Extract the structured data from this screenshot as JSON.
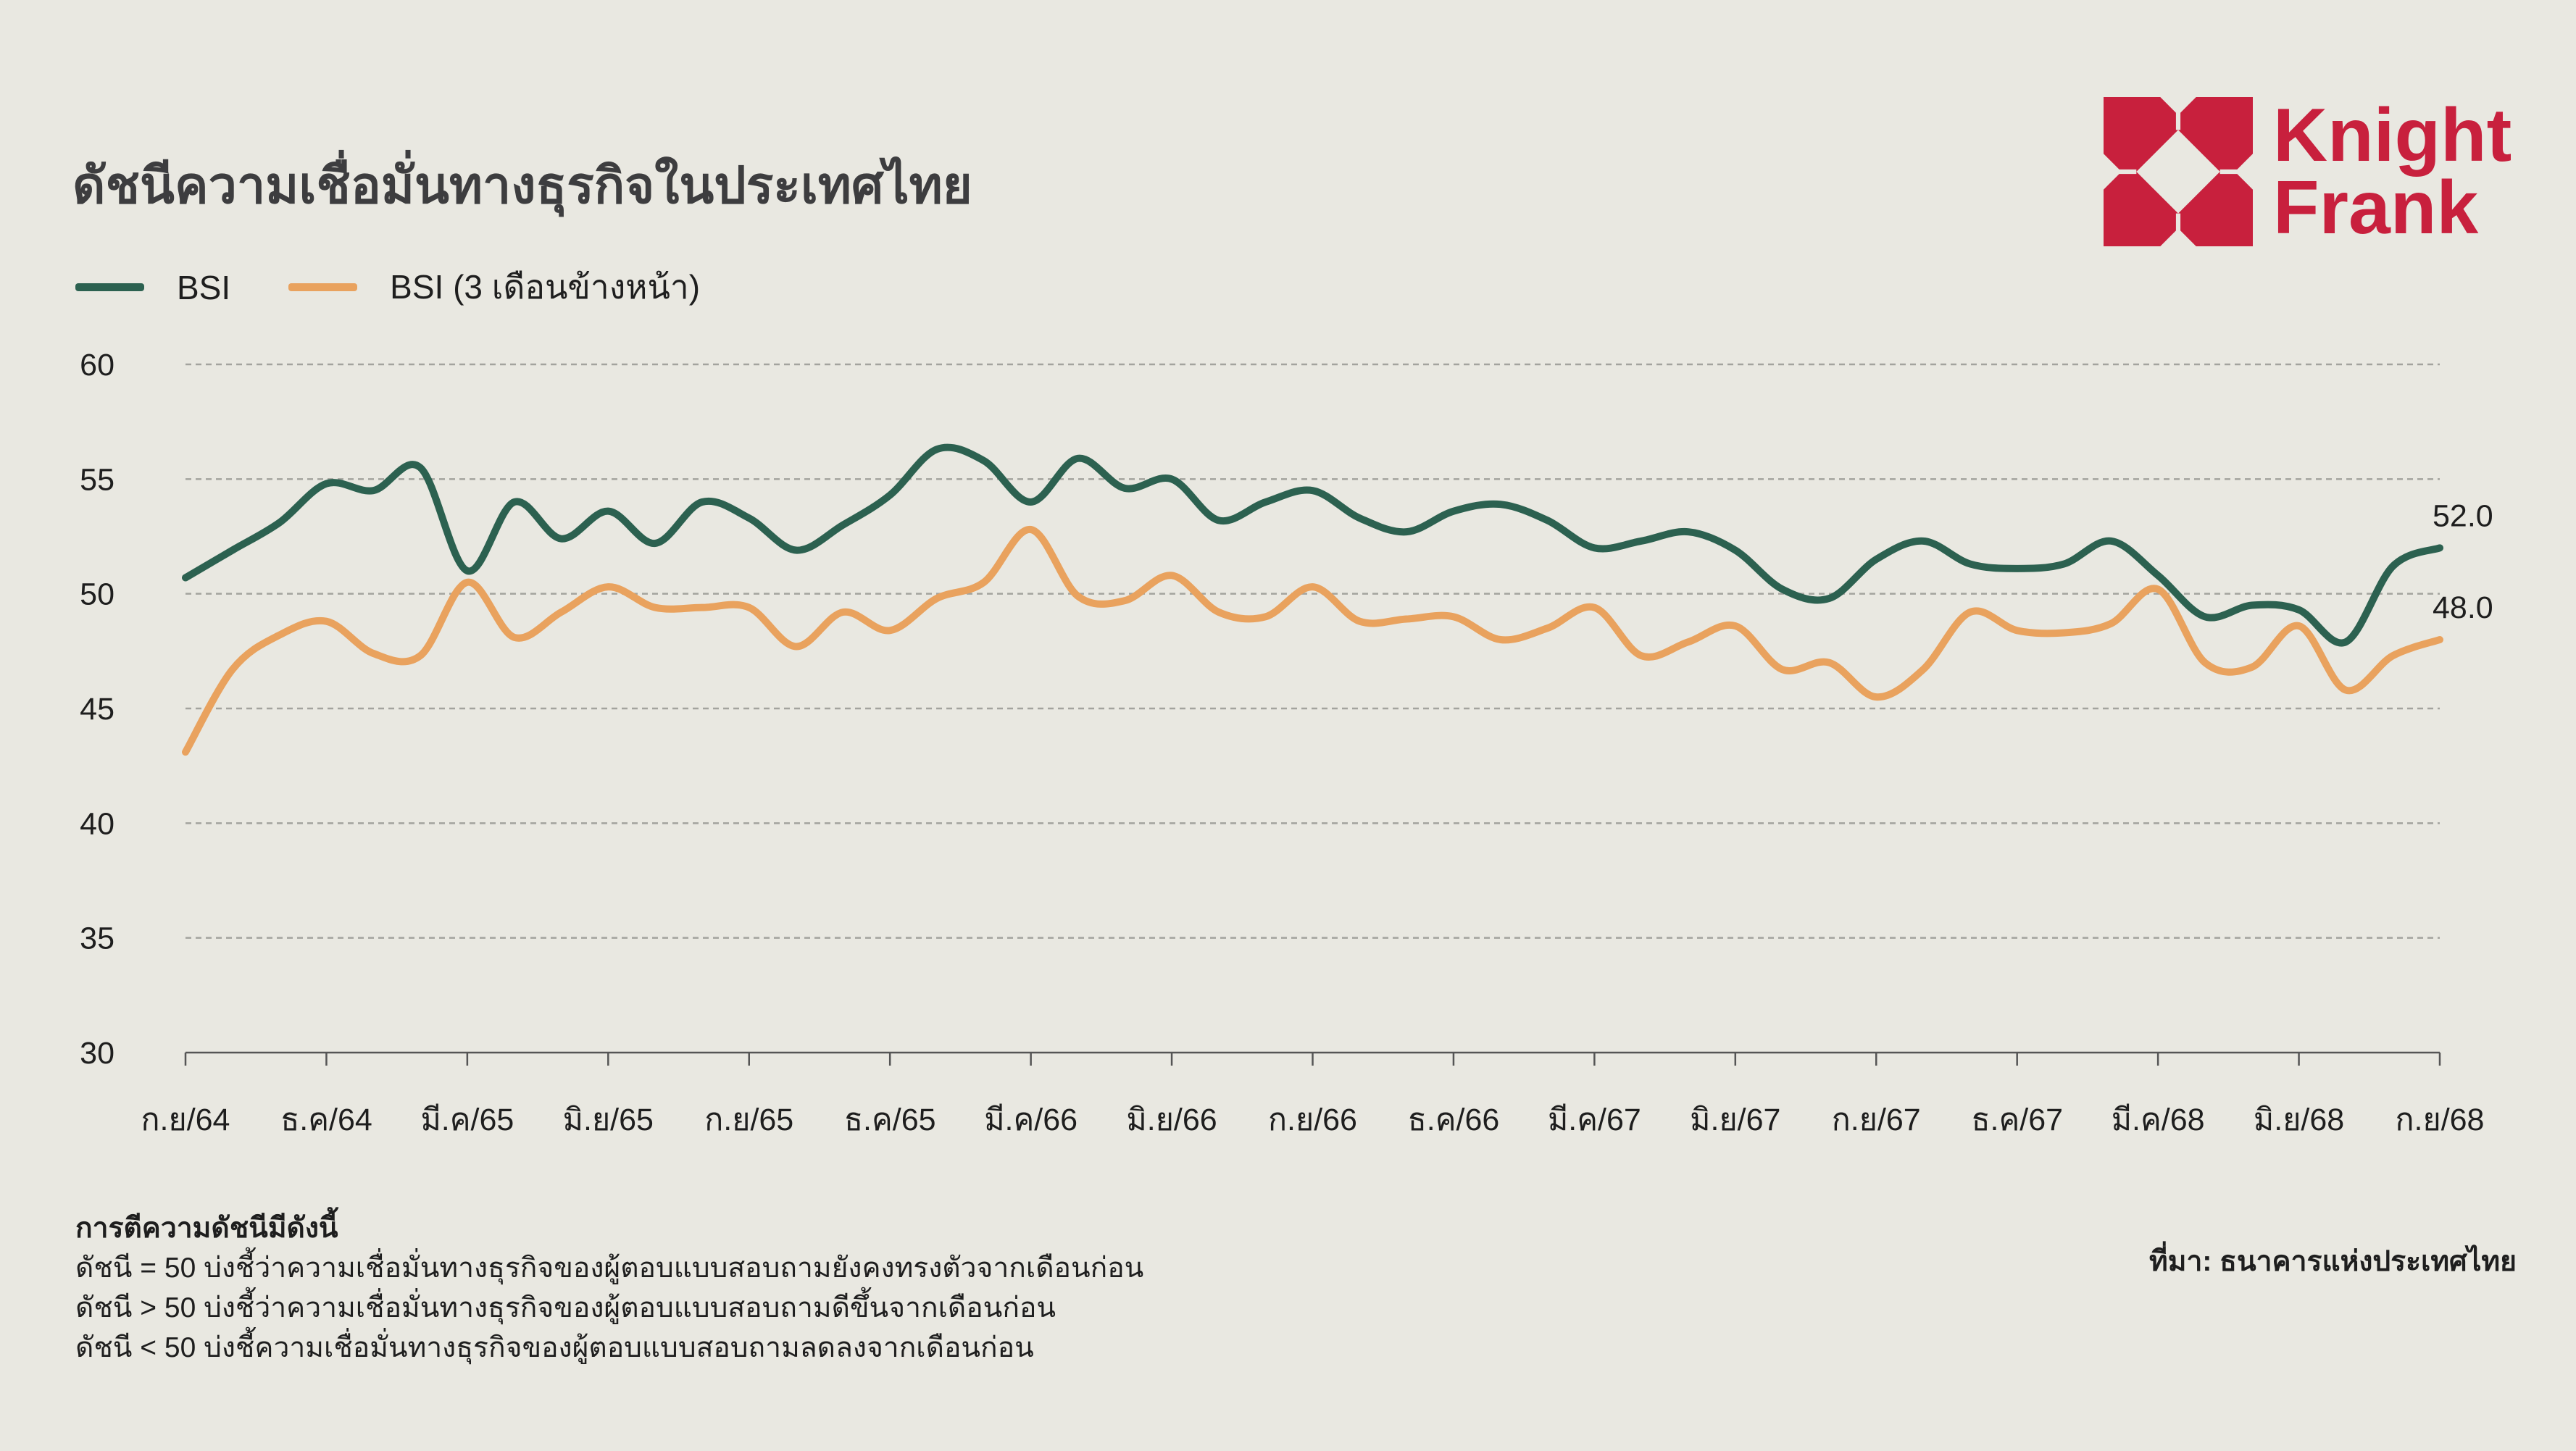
{
  "title": "ดัชนีความเชื่อมั่นทางธุรกิจในประเทศไทย",
  "logo": {
    "line1": "Knight",
    "line2": "Frank",
    "color": "#c8203d"
  },
  "legend": [
    {
      "label": "BSI",
      "color": "#2c6150"
    },
    {
      "label": "BSI (3 เดือนข้างหน้า)",
      "color": "#e9a25e"
    }
  ],
  "notes": {
    "heading": "การตีความดัชนีมีดังนี้",
    "lines": [
      "ดัชนี = 50 บ่งชี้ว่าความเชื่อมั่นทางธุรกิจของผู้ตอบแบบสอบถามยังคงทรงตัวจากเดือนก่อน",
      "ดัชนี > 50 บ่งชี้ว่าความเชื่อมั่นทางธุรกิจของผู้ตอบแบบสอบถามดีขึ้นจากเดือนก่อน",
      "ดัชนี < 50 บ่งชี้ความเชื่อมั่นทางธุรกิจของผู้ตอบแบบสอบถามลดลงจากเดือนก่อน"
    ]
  },
  "source": "ที่มา: ธนาคารแห่งประเทศไทย",
  "chart_data": {
    "type": "line",
    "title": "ดัชนีความเชื่อมั่นทางธุรกิจในประเทศไทย",
    "xlabel": "",
    "ylabel": "",
    "ylim": [
      30,
      60
    ],
    "yticks": [
      "30",
      "35",
      "40",
      "45",
      "50",
      "55",
      "60"
    ],
    "grid": true,
    "legend_position": "top-left",
    "xtick_labels": [
      "ก.ย/64",
      "ธ.ค/64",
      "มี.ค/65",
      "มิ.ย/65",
      "ก.ย/65",
      "ธ.ค/65",
      "มี.ค/66",
      "มิ.ย/66",
      "ก.ย/66",
      "ธ.ค/66",
      "มี.ค/67",
      "มิ.ย/67",
      "ก.ย/67",
      "ธ.ค/67",
      "มี.ค/68",
      "มิ.ย/68",
      "ก.ย/68"
    ],
    "xtick_every_months": 3,
    "series": [
      {
        "name": "BSI",
        "color": "#2c6150",
        "end_label": "52.0",
        "values": [
          50.7,
          51.9,
          53.1,
          54.8,
          54.5,
          55.5,
          51.0,
          54.0,
          52.4,
          53.6,
          52.2,
          54.0,
          53.3,
          51.9,
          53.0,
          54.3,
          56.3,
          55.8,
          54.0,
          55.9,
          54.6,
          55.0,
          53.2,
          54.0,
          54.5,
          53.3,
          52.7,
          53.6,
          53.9,
          53.2,
          52.0,
          52.3,
          52.7,
          51.9,
          50.2,
          49.8,
          51.5,
          52.3,
          51.3,
          51.1,
          51.3,
          52.3,
          50.8,
          49.0,
          49.5,
          49.3,
          47.9,
          51.2,
          52.0
        ]
      },
      {
        "name": "BSI (3 เดือนข้างหน้า)",
        "color": "#e9a25e",
        "end_label": "48.0",
        "values": [
          43.1,
          46.7,
          48.2,
          48.8,
          47.4,
          47.3,
          50.5,
          48.1,
          49.2,
          50.3,
          49.4,
          49.4,
          49.4,
          47.7,
          49.2,
          48.4,
          49.8,
          50.5,
          52.8,
          49.9,
          49.7,
          50.8,
          49.2,
          49.0,
          50.3,
          48.8,
          48.9,
          49.0,
          48.0,
          48.5,
          49.4,
          47.3,
          47.9,
          48.6,
          46.7,
          47.0,
          45.5,
          46.7,
          49.2,
          48.4,
          48.3,
          48.7,
          50.2,
          47.0,
          46.8,
          48.6,
          45.8,
          47.3,
          48.0
        ]
      }
    ]
  }
}
